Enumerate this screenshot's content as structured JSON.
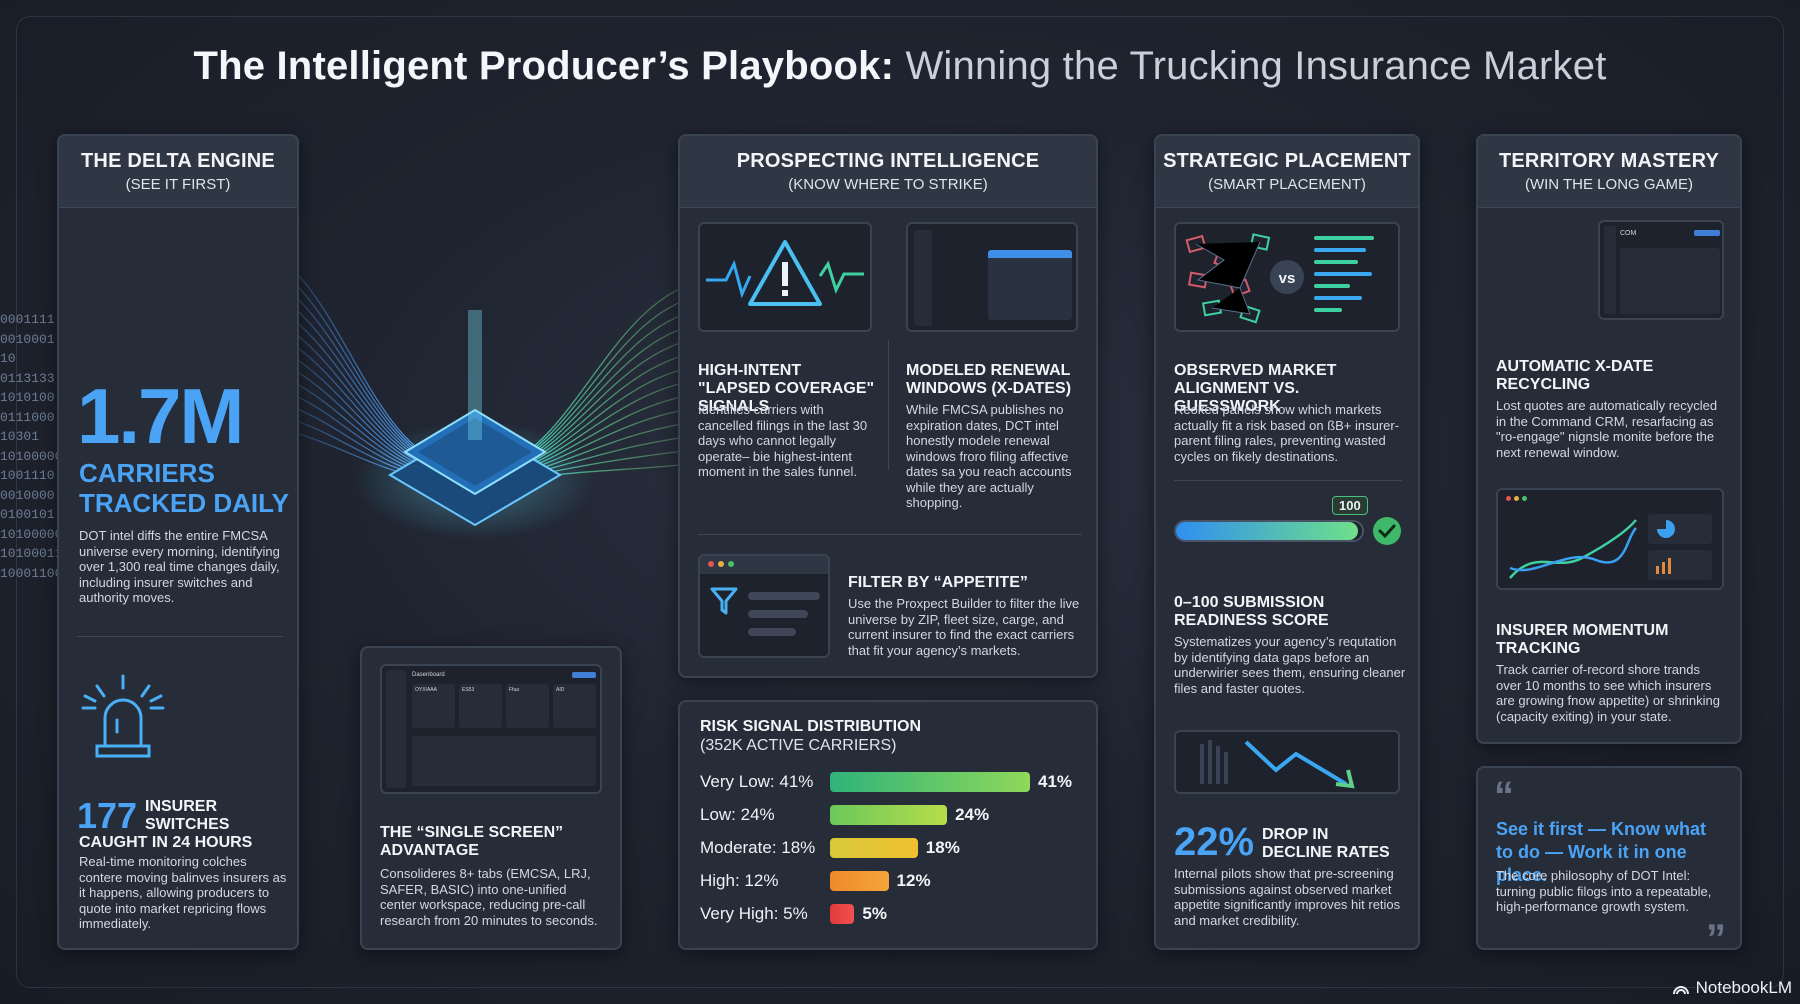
{
  "title": {
    "main": "The Intelligent Producer’s Playbook:",
    "rest": " Winning the Trucking Insurance Market"
  },
  "delta": {
    "title": "THE DELTA ENGINE",
    "subtitle": "(SEE IT FIRST)",
    "stat": "1.7M",
    "stat_label_1": "CARRIERS",
    "stat_label_2": "TRACKED DAILY",
    "desc": "DOT intel diffs the entire FMCSA universe every morning, identifying over 1,300 real time changes daily, including insurer switches and authority moves.",
    "switch_num": "177",
    "switch_label_1": "INSURER",
    "switch_label_2": "SWITCHES",
    "switch_label_3": "CAUGHT IN 24 HOURS",
    "switch_desc": "Real-time monitoring colches contere moving balinves insurers as it happens, allowing producers to quote into market repricing flows immediately.",
    "binary": [
      "0001111",
      "0010001",
      "10",
      "0113133",
      "1010100",
      "0111000",
      "10301",
      "10100000",
      "1001110",
      "0010000",
      "0100101",
      "10100000",
      "10100011",
      "10001100"
    ]
  },
  "single": {
    "title": "THE “SINGLE SCREEN” ADVANTAGE",
    "desc": "Consolideres 8+ tabs (EMCSA, LRJ, SAFER, BASIC) into one-unified center workspace, reducing pre-call research from 20 minutes to seconds.",
    "mock_header": "Dasenboard",
    "mock_cards": [
      "OYXIAAA",
      "ES53",
      "Ffua",
      "AID"
    ]
  },
  "prospect": {
    "title": "PROSPECTING INTELLIGENCE",
    "subtitle": "(KNOW WHERE TO STRIKE)",
    "f1_title": "HIGH-INTENT \"LAPSED COVERAGE\" SIGNALS",
    "f1_desc": "Identifies carriers with cancelled filings in the last 30 days who cannot legally operate– bie highest-intent moment in the sales funnel.",
    "f2_title": "MODELED RENEWAL WINDOWS (X-DATES)",
    "f2_desc": "While FMCSA publishes no expiration dates, DCT intel honestly modele renewal windows froro filing affective dates sa you reach accounts while they are actually shopping.",
    "f3_title": "FILTER BY “APPETITE”",
    "f3_desc": "Use the Proxpect Builder to filter the live universe by ZIP, fleet size, carge, and current insurer to find the exact carriers that fit your agency’s markets."
  },
  "risk": {
    "title": "RISK SIGNAL DISTRIBUTION",
    "subtitle": "(352K ACTIVE CARRIERS)",
    "rows": [
      {
        "label": "Very Low: 41%",
        "value": 41,
        "display": "41%",
        "color_a": "#2fb37a",
        "color_b": "#8fd85a"
      },
      {
        "label": "Low: 24%",
        "value": 24,
        "display": "24%",
        "color_a": "#6bc85b",
        "color_b": "#b6dd4a"
      },
      {
        "label": "Moderate: 18%",
        "value": 18,
        "display": "18%",
        "color_a": "#d7c93a",
        "color_b": "#f0c030"
      },
      {
        "label": "High: 12%",
        "value": 12,
        "display": "12%",
        "color_a": "#ef8a2a",
        "color_b": "#f4a53a"
      },
      {
        "label": "Very High: 5%",
        "value": 5,
        "display": "5%",
        "color_a": "#e23b3b",
        "color_b": "#f05050"
      }
    ]
  },
  "strategic": {
    "title": "STRATEGIC PLACEMENT",
    "subtitle": "(SMART PLACEMENT)",
    "vs": "vs",
    "f1_title": "OBSERVED MARKET ALIGNMENT VS. GUESSWORK",
    "f1_desc": "Reoked panels show which markets actually fit a risk based on ßB+ insurer-parent filing rales, preventing wasted cycles on fikely destinations.",
    "score_badge": "100",
    "score_fill": 0.98,
    "f2_title": "0–100 SUBMISSION READINESS SCORE",
    "f2_desc": "Systematizes your agency’s requtation by identifying data gaps before an underwirier sees them, ensuring cleaner files and faster quotes.",
    "stat": "22%",
    "stat_label_1": "DROP IN",
    "stat_label_2": "DECLINE RATES",
    "stat_desc": "Internal pilots show that pre-screening submissions against observed market appetite significantly improves hit retios and market credibility."
  },
  "territory": {
    "title": "TERRITORY MASTERY",
    "subtitle": "(WIN THE LONG GAME)",
    "mock_label": "COM",
    "f1_title": "AUTOMATIC X-DATE RECYCLING",
    "f1_desc": "Lost quotes are automatically recycled in the Command CRM, resarfacing as \"ro-engage\" nignsle monite before the next renewal window.",
    "f2_title": "INSURER MOMENTUM TRACKING",
    "f2_desc": "Track carrier of-record shore trands over 10 months to see which insurers are growing fnow appetite) or shrinking (capacity exiting) in your state."
  },
  "quote": {
    "text": "See it first — Know what to do — Work it in one place.",
    "desc": "The core philosophy of DOT Intel: turning public filogs into a repeatable, high-performance growth system."
  },
  "watermark": "NotebookLM",
  "colors": {
    "accent": "#4aa3f5",
    "panel": "#262c38",
    "header": "#2f3644"
  }
}
